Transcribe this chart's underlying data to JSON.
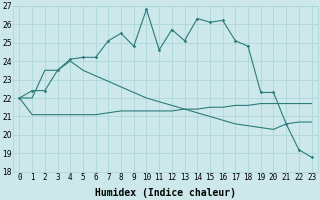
{
  "xlabel": "Humidex (Indice chaleur)",
  "x": [
    0,
    1,
    2,
    3,
    4,
    5,
    6,
    7,
    8,
    9,
    10,
    11,
    12,
    13,
    14,
    15,
    16,
    17,
    18,
    19,
    20,
    21,
    22,
    23
  ],
  "series": {
    "jagged": [
      22.0,
      22.4,
      22.4,
      23.5,
      24.1,
      24.2,
      24.2,
      25.1,
      25.5,
      24.8,
      26.8,
      24.6,
      25.7,
      25.1,
      26.3,
      26.1,
      26.2,
      25.1,
      24.8,
      22.3,
      22.3,
      20.6,
      19.2,
      18.8
    ],
    "flat": [
      22.0,
      21.1,
      21.1,
      21.1,
      21.1,
      21.1,
      21.1,
      21.2,
      21.3,
      21.3,
      21.3,
      21.3,
      21.3,
      21.4,
      21.4,
      21.5,
      21.5,
      21.6,
      21.6,
      21.7,
      21.7,
      21.7,
      21.7,
      21.7
    ],
    "diag": [
      22.0,
      22.0,
      23.5,
      23.5,
      24.0,
      23.5,
      23.2,
      22.9,
      22.6,
      22.3,
      22.0,
      21.8,
      21.6,
      21.4,
      21.2,
      21.0,
      20.8,
      20.6,
      20.5,
      20.4,
      20.3,
      20.6,
      20.7,
      20.7
    ]
  },
  "ylim_min": 18,
  "ylim_max": 27,
  "yticks": [
    18,
    19,
    20,
    21,
    22,
    23,
    24,
    25,
    26,
    27
  ],
  "xticks": [
    0,
    1,
    2,
    3,
    4,
    5,
    6,
    7,
    8,
    9,
    10,
    11,
    12,
    13,
    14,
    15,
    16,
    17,
    18,
    19,
    20,
    21,
    22,
    23
  ],
  "line_color": "#2d7b7b",
  "bg_color": "#cce8ea",
  "grid_color": "#a8d4d6",
  "xlabel_fontsize": 7,
  "tick_fontsize": 5.5
}
